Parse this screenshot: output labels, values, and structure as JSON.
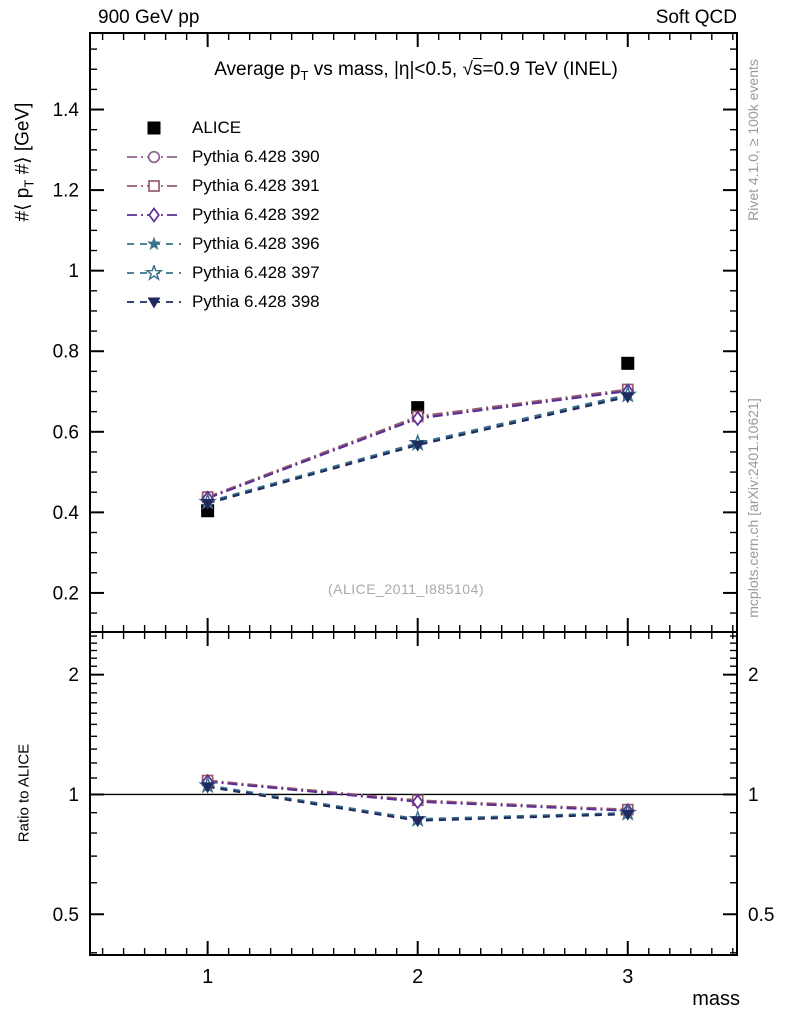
{
  "header": {
    "left": "900 GeV pp",
    "right": "Soft QCD"
  },
  "side_notes": {
    "top": "Rivet 4.1.0, ≥ 100k events",
    "bottom": "mcplots.cern.ch [arXiv:2401.10621]"
  },
  "title_parts": {
    "p1": "Average p",
    "sub": "T",
    "p2": " vs mass, |η|<0.5, ",
    "sqrt": "√",
    "sbar": "s",
    "p3": "=0.9 TeV (INEL)"
  },
  "ylabel_parts": {
    "p1": "#⟨ p",
    "sub": "T",
    "p2": " #⟩ [GeV]"
  },
  "ratio_ylabel": "Ratio to ALICE",
  "xlabel": "mass",
  "watermark": "(ALICE_2011_I885104)",
  "chart_data": {
    "type": "line",
    "title": "Average pT vs mass, |η|<0.5, √s=0.9 TeV (INEL)",
    "xlabel": "mass",
    "x": [
      1,
      2,
      3
    ],
    "xlim": [
      0.44,
      3.52
    ],
    "xticks": [
      1,
      2,
      3
    ],
    "xtick_labels": [
      "1",
      "2",
      "3"
    ],
    "grid": false,
    "legend_position": "top-left",
    "main_panel": {
      "ylabel": "#⟨ p_T #⟩ [GeV]",
      "scale": "linear",
      "ylim": [
        0.103,
        1.59
      ],
      "yticks": [
        0.2,
        0.4,
        0.6,
        0.8,
        1,
        1.2,
        1.4
      ],
      "ytick_labels": [
        "0.2",
        "0.4",
        "0.6",
        "0.8",
        "1",
        "1.2",
        "1.4"
      ]
    },
    "ratio_panel": {
      "ylabel": "Ratio to ALICE",
      "scale": "log",
      "ylim": [
        0.395,
        2.56
      ],
      "yticks": [
        0.5,
        1,
        2
      ],
      "ytick_labels": [
        "0.5",
        "1",
        "2"
      ],
      "minor_ticks": [
        0.4,
        0.6,
        0.7,
        0.8,
        0.9,
        1.1,
        1.2,
        1.3,
        1.4,
        1.5,
        1.6,
        1.7,
        1.8,
        1.9,
        2.1,
        2.2,
        2.3,
        2.4,
        2.5
      ],
      "baseline": 1
    },
    "series": [
      {
        "name": "ALICE",
        "color": "#000000",
        "marker": "square-filled",
        "line": "none",
        "values": [
          0.404,
          0.66,
          0.77
        ],
        "ratio": null
      },
      {
        "name": "Pythia 6.428 390",
        "color": "#91648f",
        "marker": "circle-open",
        "line": "dashdot",
        "values": [
          0.437,
          0.636,
          0.703
        ],
        "ratio": [
          1.082,
          0.964,
          0.913
        ]
      },
      {
        "name": "Pythia 6.428 391",
        "color": "#925d6c",
        "marker": "square-open",
        "line": "dashdot",
        "values": [
          0.438,
          0.638,
          0.705
        ],
        "ratio": [
          1.084,
          0.967,
          0.916
        ]
      },
      {
        "name": "Pythia 6.428 392",
        "color": "#5c2d96",
        "marker": "diamond-open",
        "line": "dashdot",
        "values": [
          0.435,
          0.633,
          0.701
        ],
        "ratio": [
          1.077,
          0.959,
          0.91
        ]
      },
      {
        "name": "Pythia 6.428 396",
        "color": "#3a708a",
        "marker": "star-filled",
        "line": "dashed",
        "values": [
          0.425,
          0.57,
          0.69
        ],
        "ratio": [
          1.052,
          0.864,
          0.896
        ]
      },
      {
        "name": "Pythia 6.428 397",
        "color": "#3a708a",
        "marker": "star-open",
        "line": "dashed",
        "values": [
          0.426,
          0.572,
          0.692
        ],
        "ratio": [
          1.054,
          0.867,
          0.899
        ]
      },
      {
        "name": "Pythia 6.428 398",
        "color": "#1e2a60",
        "marker": "triangle-down-filled",
        "line": "dashed",
        "values": [
          0.422,
          0.567,
          0.687
        ],
        "ratio": [
          1.045,
          0.859,
          0.892
        ]
      }
    ]
  }
}
